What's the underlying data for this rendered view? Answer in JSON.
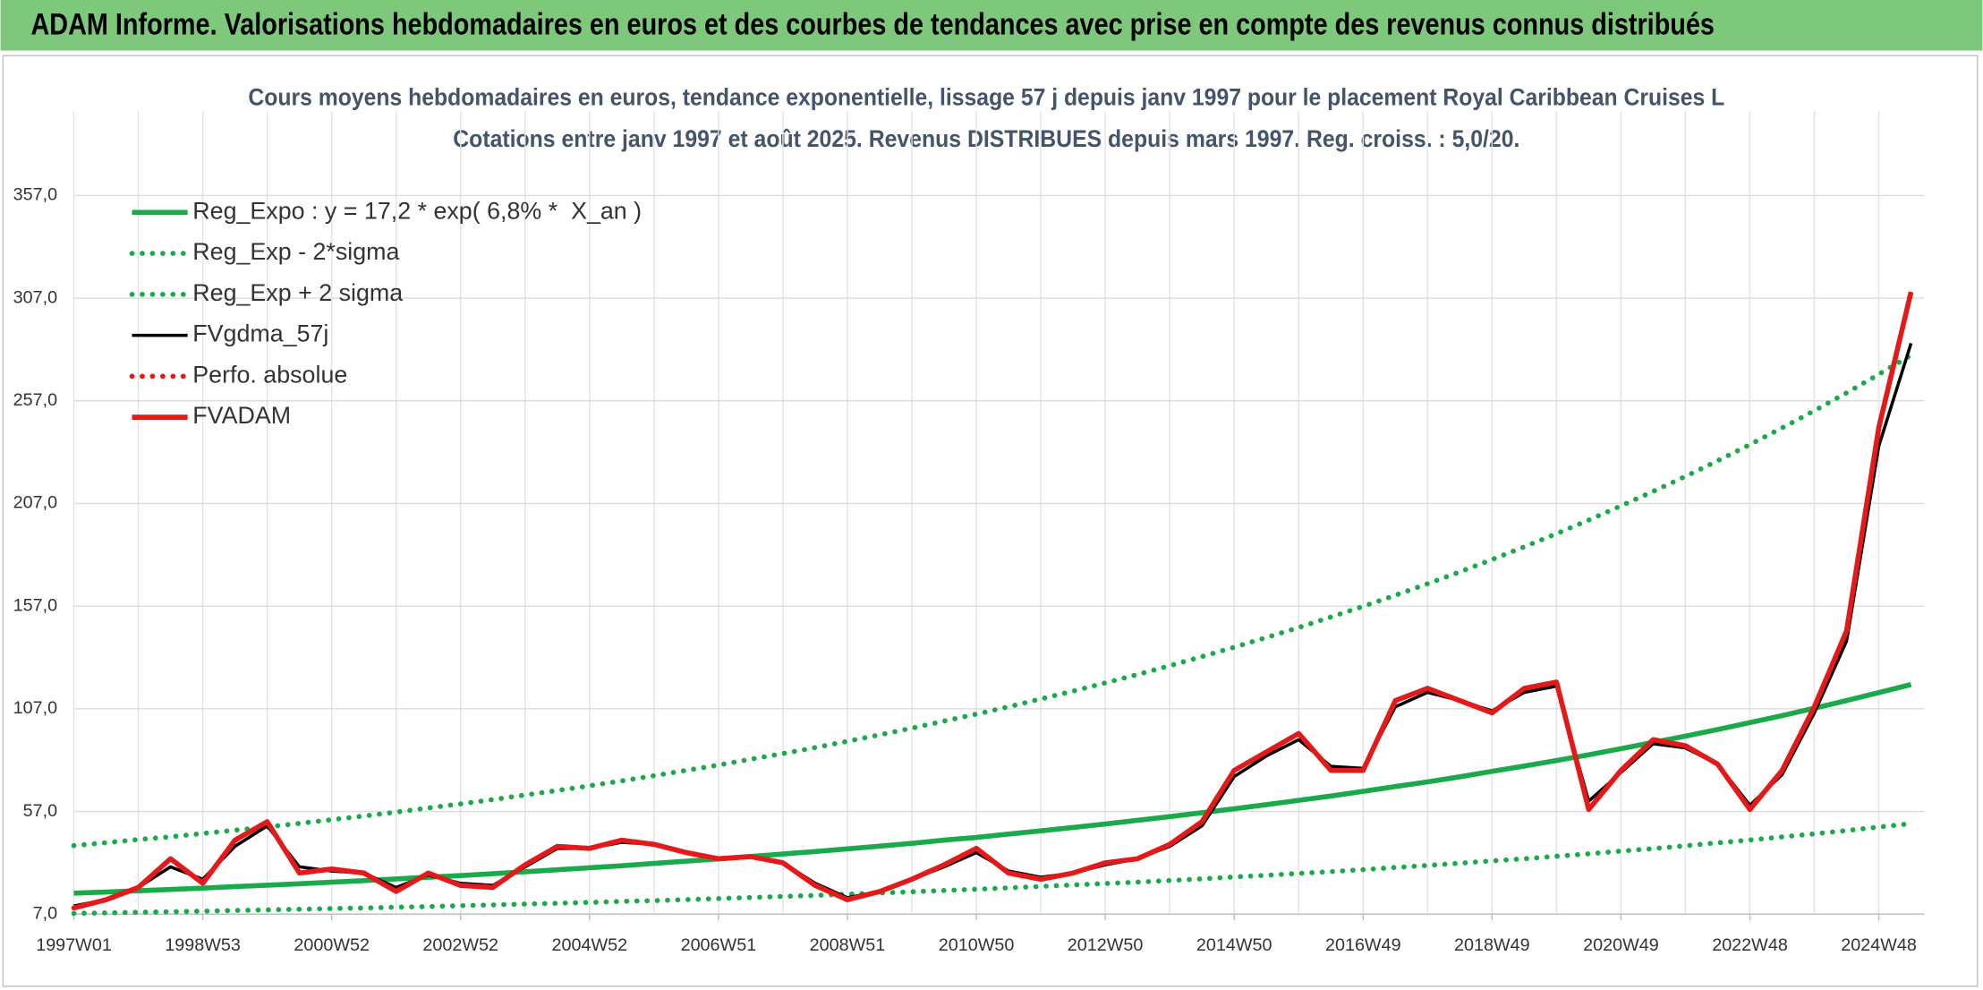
{
  "header": {
    "title": "ADAM Informe. Valorisations hebdomadaires en euros et des courbes de tendances avec prise en compte des revenus connus distribués"
  },
  "chart_data": {
    "type": "line",
    "title": "Cours moyens hebdomadaires en euros, tendance exponentielle, lissage 57 j depuis janv 1997 pour le placement Royal Caribbean Cruises L",
    "subtitle": "Cotations entre janv 1997 et août 2025. Revenus DISTRIBUES depuis mars 1997. Reg. croiss. : 5,0/20.",
    "categories": [
      "1997W01",
      null,
      null,
      null,
      "1998W53",
      null,
      null,
      null,
      "2000W52",
      null,
      null,
      null,
      "2002W52",
      null,
      null,
      null,
      "2004W52",
      null,
      null,
      null,
      "2006W51",
      null,
      null,
      null,
      "2008W51",
      null,
      null,
      null,
      "2010W50",
      null,
      null,
      null,
      "2012W50",
      null,
      null,
      null,
      "2014W50",
      null,
      null,
      null,
      "2016W49",
      null,
      null,
      null,
      "2018W49",
      null,
      null,
      null,
      "2020W49",
      null,
      null,
      null,
      "2022W48",
      null,
      null,
      null,
      "2024W48",
      null
    ],
    "ylim": [
      7,
      398
    ],
    "yticks": [
      {
        "value": 7,
        "label": "7,0"
      },
      {
        "value": 57,
        "label": "57,0"
      },
      {
        "value": 107,
        "label": "107,0"
      },
      {
        "value": 157,
        "label": "157,0"
      },
      {
        "value": 207,
        "label": "207,0"
      },
      {
        "value": 257,
        "label": "257,0"
      },
      {
        "value": 307,
        "label": "307,0"
      },
      {
        "value": 357,
        "label": "357,0"
      }
    ],
    "grid": true,
    "legend": "top-left",
    "series": [
      {
        "name": "Reg_Expo : y = 17,2 * exp( 6,8% *  X_an )",
        "color": "#1aaa4a",
        "style": "solid",
        "values": [
          17.2,
          17.8,
          18.4,
          19.0,
          19.7,
          20.4,
          21.1,
          21.8,
          22.6,
          23.3,
          24.1,
          25.0,
          25.8,
          26.7,
          27.6,
          28.6,
          29.6,
          30.6,
          31.7,
          32.8,
          33.9,
          35.1,
          36.3,
          37.5,
          38.8,
          40.1,
          41.5,
          43.0,
          44.4,
          46.0,
          47.6,
          49.2,
          50.9,
          52.7,
          54.5,
          56.4,
          58.3,
          60.3,
          62.4,
          64.5,
          66.8,
          69.1,
          71.4,
          73.9,
          76.5,
          79.1,
          81.8,
          84.6,
          87.6,
          90.6,
          93.7,
          96.9,
          100.3,
          103.7,
          107.3,
          111.0,
          114.9,
          118.8
        ]
      },
      {
        "name": "Reg_Exp - 2*sigma",
        "color": "#1aaa4a",
        "style": "dotted",
        "values": [
          7.4,
          7.6,
          7.9,
          8.2,
          8.5,
          8.8,
          9.1,
          9.4,
          9.7,
          10.0,
          10.4,
          10.7,
          11.1,
          11.5,
          11.9,
          12.3,
          12.7,
          13.2,
          13.6,
          14.1,
          14.6,
          15.1,
          15.6,
          16.1,
          16.7,
          17.3,
          17.9,
          18.5,
          19.1,
          19.8,
          20.5,
          21.2,
          21.9,
          22.6,
          23.4,
          24.2,
          25.1,
          25.9,
          26.8,
          27.7,
          28.7,
          29.7,
          30.7,
          31.8,
          32.9,
          34.0,
          35.2,
          36.4,
          37.7,
          38.9,
          40.3,
          41.7,
          43.1,
          44.6,
          46.1,
          47.7,
          49.4,
          51.1
        ]
      },
      {
        "name": "Reg_Exp + 2 sigma",
        "color": "#1aaa4a",
        "style": "dotted",
        "values": [
          40.4,
          41.8,
          43.3,
          44.7,
          46.3,
          47.9,
          49.5,
          51.2,
          53.0,
          54.8,
          56.7,
          58.7,
          60.7,
          62.8,
          65.0,
          67.2,
          69.5,
          71.9,
          74.4,
          77.0,
          79.6,
          82.4,
          85.2,
          88.1,
          91.2,
          94.3,
          97.6,
          101.0,
          104.4,
          108.0,
          111.8,
          115.6,
          119.6,
          123.7,
          128.0,
          132.4,
          137.0,
          141.7,
          146.6,
          151.7,
          156.9,
          162.3,
          167.9,
          173.7,
          179.7,
          185.9,
          192.3,
          198.9,
          205.8,
          212.9,
          220.2,
          227.8,
          235.7,
          243.8,
          252.2,
          260.9,
          269.9,
          279.2
        ]
      },
      {
        "name": "FVgdma_57j",
        "color": "#000000",
        "style": "solid",
        "values": [
          11,
          14,
          20,
          30,
          24,
          40,
          50,
          30,
          28,
          27,
          20,
          26,
          22,
          21,
          30,
          39,
          39,
          42,
          41,
          37,
          34,
          35,
          32,
          22,
          15,
          18,
          24,
          30,
          37,
          28,
          25,
          27,
          31,
          34,
          40,
          50,
          74,
          84,
          92,
          79,
          78,
          108,
          115,
          111,
          106,
          115,
          118,
          62,
          76,
          90,
          88,
          80,
          60,
          75,
          105,
          140,
          235,
          285
        ]
      },
      {
        "name": "Perfo. absolue",
        "color": "#e41a1a",
        "style": "dotted",
        "values": [
          10,
          14,
          20,
          34,
          22,
          43,
          52,
          27,
          29,
          27,
          18,
          27,
          21,
          20,
          31,
          40,
          39,
          43,
          41,
          37,
          34,
          35,
          32,
          21,
          14,
          18,
          24,
          31,
          39,
          27,
          24,
          27,
          32,
          34,
          41,
          52,
          77,
          86,
          95,
          77,
          77,
          111,
          117,
          111,
          105,
          117,
          120,
          58,
          77,
          92,
          89,
          80,
          58,
          77,
          108,
          145,
          244,
          310
        ]
      },
      {
        "name": "FVADAM",
        "color": "#e41a1a",
        "style": "solid",
        "values": [
          10,
          14,
          20,
          34,
          22,
          43,
          52,
          27,
          29,
          27,
          18,
          27,
          21,
          20,
          31,
          40,
          39,
          43,
          41,
          37,
          34,
          35,
          32,
          21,
          14,
          18,
          24,
          31,
          39,
          27,
          24,
          27,
          32,
          34,
          41,
          52,
          77,
          86,
          95,
          77,
          77,
          111,
          117,
          111,
          105,
          117,
          120,
          58,
          77,
          92,
          89,
          80,
          58,
          77,
          108,
          145,
          244,
          310
        ]
      }
    ]
  }
}
